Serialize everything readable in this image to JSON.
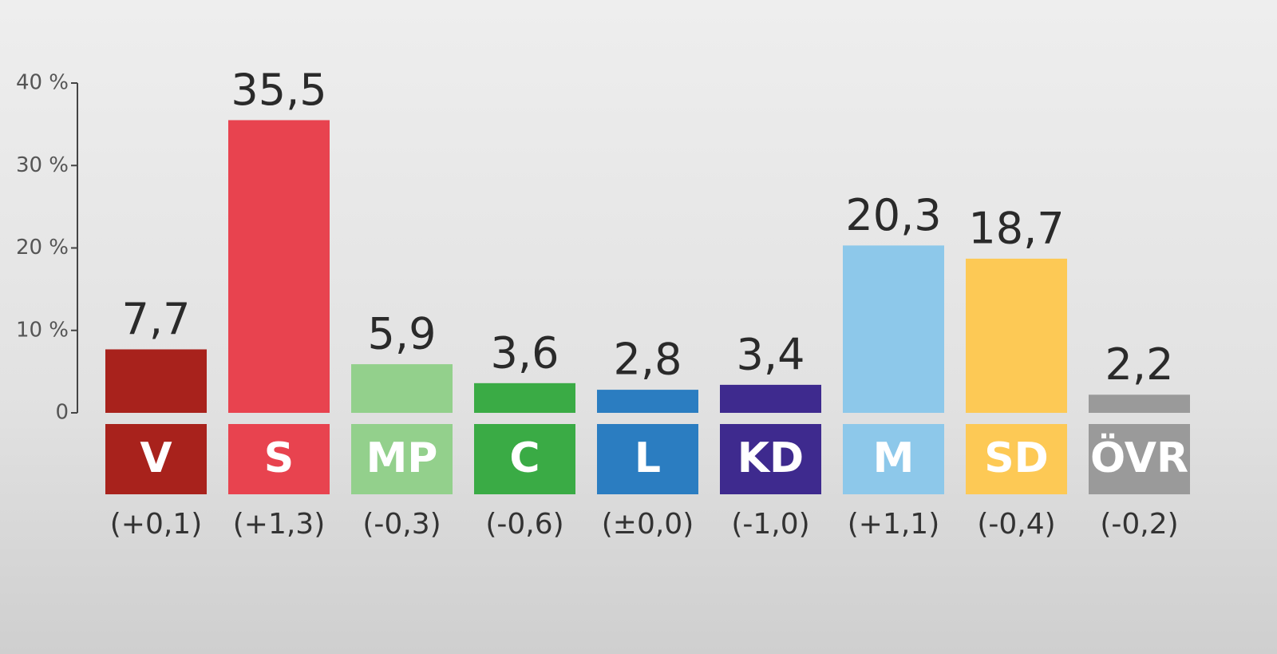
{
  "chart_data": {
    "type": "bar",
    "categories": [
      "V",
      "S",
      "MP",
      "C",
      "L",
      "KD",
      "M",
      "SD",
      "ÖVR"
    ],
    "values": [
      7.7,
      35.5,
      5.9,
      3.6,
      2.8,
      3.4,
      20.3,
      18.7,
      2.2
    ],
    "value_labels": [
      "7,7",
      "35,5",
      "5,9",
      "3,6",
      "2,8",
      "3,4",
      "20,3",
      "18,7",
      "2,2"
    ],
    "change_labels": [
      "(+0,1)",
      "(+1,3)",
      "(-0,3)",
      "(-0,6)",
      "(±0,0)",
      "(-1,0)",
      "(+1,1)",
      "(-0,4)",
      "(-0,2)"
    ],
    "colors": [
      "#a8221c",
      "#e8434f",
      "#93d08c",
      "#3aab45",
      "#2b7dc1",
      "#3e2a8e",
      "#8dc8ea",
      "#fdc955",
      "#9a9a9a"
    ],
    "ylim": [
      0,
      40
    ],
    "yticks": [
      0,
      {
        "value": 10,
        "label": "10 %"
      },
      {
        "value": 20,
        "label": "20 %"
      },
      {
        "value": 30,
        "label": "30 %"
      },
      {
        "value": 40,
        "label": "40 %"
      }
    ],
    "grid": false
  }
}
